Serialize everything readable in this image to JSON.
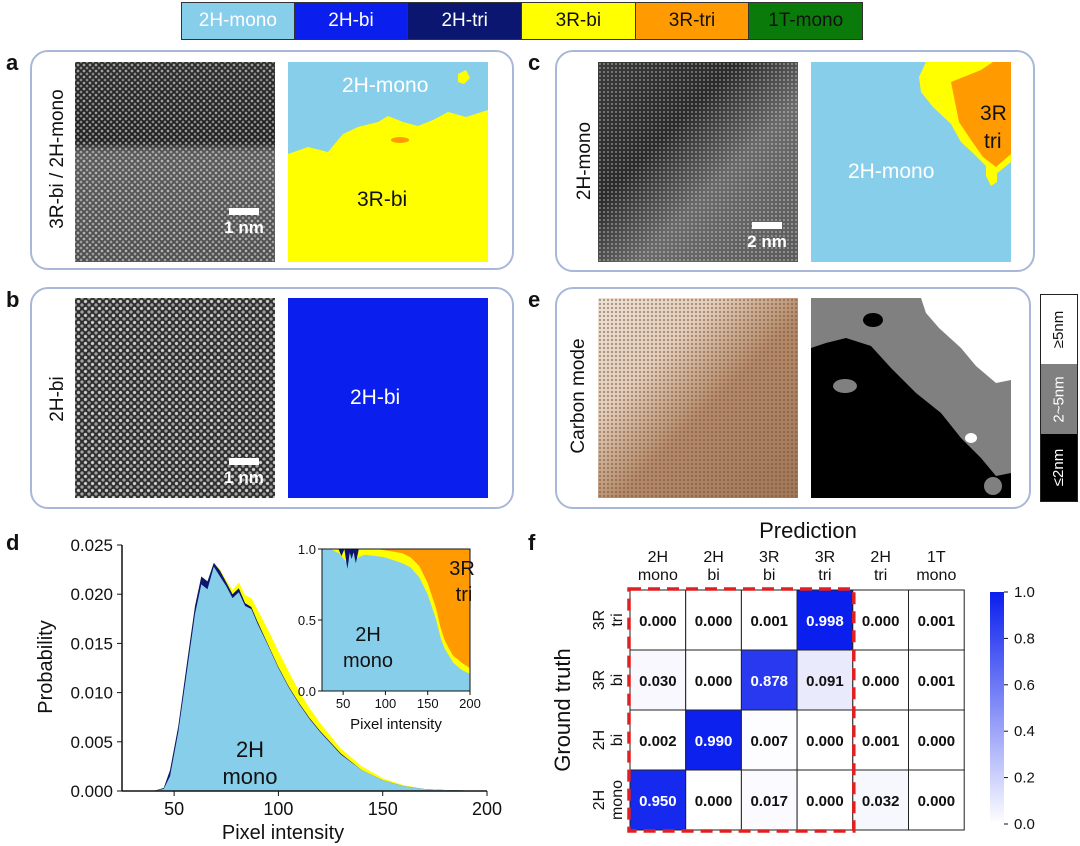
{
  "legend": [
    {
      "label": "2H-mono",
      "color": "#87ceeb",
      "text": "#ffffff"
    },
    {
      "label": "2H-bi",
      "color": "#0a1eee",
      "text": "#ffffff"
    },
    {
      "label": "2H-tri",
      "color": "#0b1670",
      "text": "#ffffff"
    },
    {
      "label": "3R-bi",
      "color": "#ffff00",
      "text": "#111111"
    },
    {
      "label": "3R-tri",
      "color": "#ff9a00",
      "text": "#111111"
    },
    {
      "label": "1T-mono",
      "color": "#0a7a0a",
      "text": "#111111"
    }
  ],
  "panels": {
    "a": {
      "letter": "a",
      "side_label": "3R-bi / 2H-mono",
      "scale": "1 nm",
      "map_top": "2H-mono",
      "map_bottom": "3R-bi"
    },
    "b": {
      "letter": "b",
      "side_label": "2H-bi",
      "scale": "1 nm",
      "map_label": "2H-bi"
    },
    "c": {
      "letter": "c",
      "side_label": "2H-mono",
      "scale": "2 nm",
      "map_main": "2H-mono",
      "map_corner_line1": "3R",
      "map_corner_line2": "tri"
    },
    "e": {
      "letter": "e",
      "side_label": "Carbon mode",
      "thickness": [
        "≥5nm",
        "2~5nm",
        "≤2nm"
      ]
    },
    "d": {
      "letter": "d"
    },
    "f": {
      "letter": "f"
    }
  },
  "chart_data": [
    {
      "type": "area",
      "title": "",
      "xlabel": "Pixel intensity",
      "ylabel": "Probability",
      "xlim": [
        25,
        200
      ],
      "ylim": [
        0,
        0.025
      ],
      "xticks": [
        "50",
        "100",
        "150",
        "200"
      ],
      "yticks": [
        "0.000",
        "0.005",
        "0.010",
        "0.015",
        "0.020",
        "0.025"
      ],
      "annotation_line1": "2H",
      "annotation_line2": "mono",
      "x": [
        25,
        40,
        45,
        48,
        52,
        56,
        60,
        63,
        66,
        69,
        72,
        75,
        78,
        81,
        84,
        87,
        90,
        95,
        100,
        105,
        110,
        115,
        120,
        130,
        140,
        150,
        160,
        170,
        180,
        200
      ],
      "series": [
        {
          "name": "2H-mono",
          "color": "#87ceeb",
          "values": [
            0,
            0,
            0.0002,
            0.0015,
            0.006,
            0.012,
            0.018,
            0.021,
            0.0205,
            0.0228,
            0.0218,
            0.0208,
            0.0196,
            0.0202,
            0.0188,
            0.0185,
            0.017,
            0.0148,
            0.0125,
            0.0105,
            0.0088,
            0.0073,
            0.006,
            0.0037,
            0.0021,
            0.0011,
            0.0005,
            0.0002,
            0.0001,
            0
          ]
        },
        {
          "name": "2H-tri",
          "color": "#0b1670",
          "values": [
            0,
            0,
            0.0003,
            0.0021,
            0.0066,
            0.0128,
            0.0188,
            0.0218,
            0.0213,
            0.0232,
            0.0224,
            0.0212,
            0.02,
            0.0206,
            0.0191,
            0.0187,
            0.0172,
            0.0149,
            0.0126,
            0.0106,
            0.0089,
            0.0074,
            0.0061,
            0.0038,
            0.0021,
            0.0011,
            0.0005,
            0.0002,
            0.0001,
            0
          ]
        },
        {
          "name": "3R-bi",
          "color": "#ffff00",
          "values": [
            0,
            0,
            0.0003,
            0.0021,
            0.0066,
            0.0128,
            0.0188,
            0.0218,
            0.0213,
            0.0232,
            0.0225,
            0.0214,
            0.0204,
            0.0212,
            0.0199,
            0.0196,
            0.0184,
            0.0164,
            0.0142,
            0.0121,
            0.0101,
            0.0084,
            0.0069,
            0.0043,
            0.0025,
            0.0013,
            0.0006,
            0.0002,
            0.0001,
            0
          ]
        }
      ]
    },
    {
      "type": "area",
      "title": "",
      "xlabel": "Pixel intensity",
      "ylabel": "",
      "xlim": [
        25,
        200
      ],
      "ylim": [
        0,
        1
      ],
      "xticks": [
        "50",
        "100",
        "150",
        "200"
      ],
      "yticks": [
        "0.0",
        "0.5",
        "1.0"
      ],
      "annotation_a_line1": "2H",
      "annotation_a_line2": "mono",
      "annotation_b_line1": "3R",
      "annotation_b_line2": "tri",
      "x": [
        25,
        35,
        45,
        55,
        60,
        65,
        75,
        90,
        100,
        110,
        120,
        130,
        140,
        150,
        160,
        165,
        170,
        175,
        180,
        190,
        200
      ],
      "series": [
        {
          "name": "2H-mono",
          "color": "#87ceeb",
          "values": [
            1,
            1,
            0.97,
            0.9,
            0.98,
            0.93,
            0.96,
            0.95,
            0.94,
            0.92,
            0.9,
            0.87,
            0.8,
            0.68,
            0.5,
            0.38,
            0.3,
            0.25,
            0.2,
            0.15,
            0.12
          ]
        },
        {
          "name": "3R-bi",
          "color": "#ffff00",
          "values": [
            1,
            1,
            1,
            1,
            1,
            1,
            1,
            1,
            0.99,
            0.98,
            0.97,
            0.94,
            0.88,
            0.76,
            0.58,
            0.45,
            0.36,
            0.3,
            0.25,
            0.2,
            0.16
          ]
        },
        {
          "name": "3R-tri",
          "color": "#ff9a00",
          "values": [
            1,
            1,
            1,
            1,
            1,
            1,
            1,
            1,
            1,
            1,
            1,
            1,
            1,
            1,
            1,
            1,
            1,
            1,
            1,
            1,
            1
          ]
        }
      ]
    },
    {
      "type": "heatmap",
      "title": "",
      "xlabel": "Prediction",
      "ylabel": "Ground truth",
      "columns": [
        [
          "2H",
          "mono"
        ],
        [
          "2H",
          "bi"
        ],
        [
          "3R",
          "bi"
        ],
        [
          "3R",
          "tri"
        ],
        [
          "2H",
          "tri"
        ],
        [
          "1T",
          "mono"
        ]
      ],
      "rows": [
        [
          "3R",
          "tri"
        ],
        [
          "3R",
          "bi"
        ],
        [
          "2H",
          "bi"
        ],
        [
          "2H",
          "mono"
        ]
      ],
      "values": [
        [
          "0.000",
          "0.000",
          "0.001",
          "0.998",
          "0.000",
          "0.001"
        ],
        [
          "0.030",
          "0.000",
          "0.878",
          "0.091",
          "0.000",
          "0.001"
        ],
        [
          "0.002",
          "0.990",
          "0.007",
          "0.000",
          "0.001",
          "0.000"
        ],
        [
          "0.950",
          "0.000",
          "0.017",
          "0.000",
          "0.032",
          "0.000"
        ]
      ],
      "colorbar_ticks": [
        "1.0",
        "0.8",
        "0.6",
        "0.4",
        "0.2",
        "0.0"
      ],
      "colorbar_range": [
        0,
        1
      ]
    }
  ]
}
